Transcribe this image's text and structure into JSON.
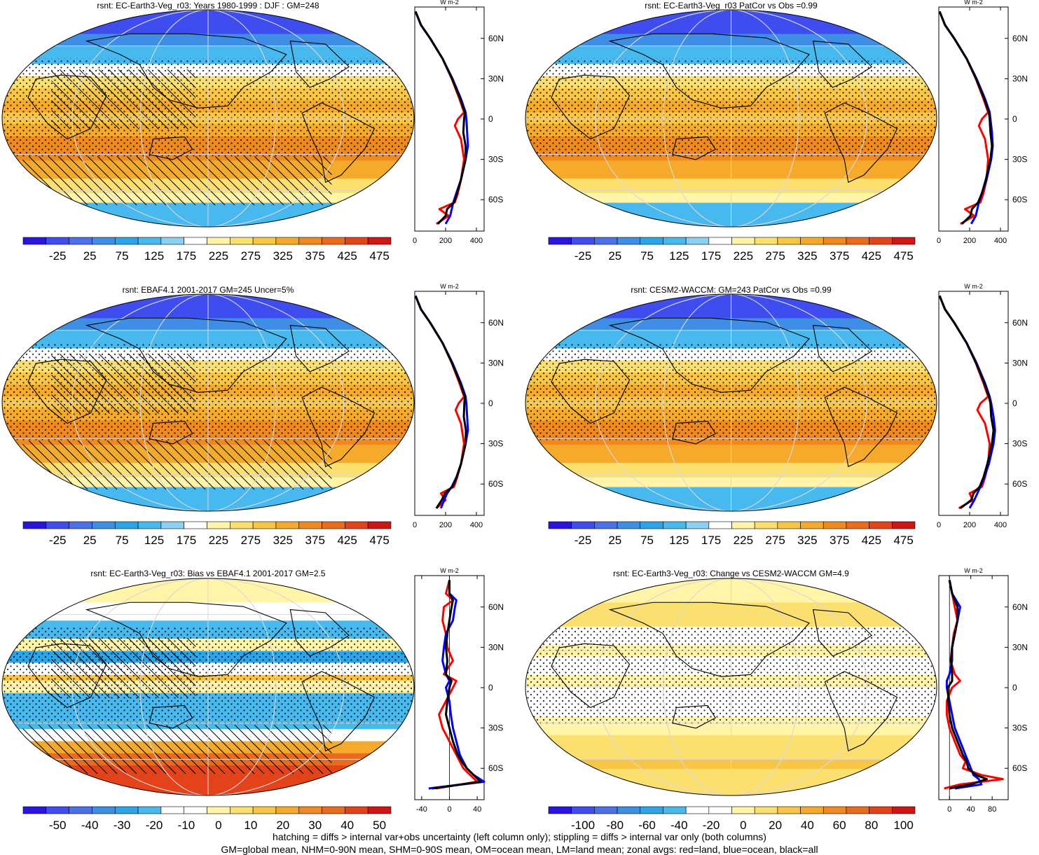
{
  "chart_data": [
    {
      "type": "heatmap",
      "title": "rsnt: EC-Earth3-Veg_r03: Years 1980-1999 : DJF : GM=248",
      "colorbar": {
        "labels": [
          "-25",
          "25",
          "75",
          "125",
          "175",
          "225",
          "275",
          "325",
          "375",
          "425",
          "475"
        ],
        "min": -50,
        "max": 500
      },
      "zonal": {
        "units": "W m-2",
        "xticks": [
          "0",
          "200",
          "400"
        ],
        "xlim": [
          0,
          450
        ],
        "lat_ticks": [
          "60N",
          "30N",
          "0",
          "30S",
          "60S"
        ],
        "series": [
          {
            "color": "red",
            "lat": [
              80,
              70,
              60,
              45,
              30,
              15,
              5,
              0,
              -5,
              -15,
              -30,
              -45,
              -55,
              -62,
              -67,
              -72,
              -78
            ],
            "values": [
              5,
              40,
              100,
              180,
              240,
              290,
              320,
              280,
              260,
              300,
              320,
              300,
              280,
              260,
              160,
              220,
              140
            ]
          },
          {
            "color": "blue",
            "lat": [
              80,
              70,
              60,
              45,
              30,
              15,
              5,
              0,
              -10,
              -20,
              -30,
              -45,
              -55,
              -62,
              -67,
              -72,
              -78
            ],
            "values": [
              5,
              40,
              100,
              180,
              245,
              300,
              330,
              335,
              340,
              345,
              330,
              300,
              270,
              250,
              240,
              230,
              200
            ]
          },
          {
            "color": "black",
            "lat": [
              80,
              70,
              60,
              45,
              30,
              15,
              5,
              0,
              -10,
              -20,
              -30,
              -45,
              -55,
              -62,
              -67,
              -72,
              -78
            ],
            "values": [
              5,
              40,
              100,
              180,
              242,
              295,
              325,
              320,
              315,
              330,
              330,
              300,
              275,
              255,
              210,
              200,
              150
            ]
          }
        ]
      }
    },
    {
      "type": "heatmap",
      "title": "rsnt: EC-Earth3-Veg_r03 PatCor vs Obs =0.99",
      "colorbar": {
        "labels": [
          "-25",
          "25",
          "75",
          "125",
          "175",
          "225",
          "275",
          "325",
          "375",
          "425",
          "475"
        ],
        "min": -50,
        "max": 500
      },
      "zonal": {
        "units": "W m-2",
        "xticks": [
          "0",
          "200",
          "400"
        ],
        "xlim": [
          0,
          450
        ],
        "lat_ticks": [
          "60N",
          "30N",
          "0",
          "30S",
          "60S"
        ],
        "series": [
          {
            "color": "red",
            "lat": [
              80,
              70,
              60,
              45,
              30,
              15,
              5,
              0,
              -5,
              -15,
              -30,
              -45,
              -55,
              -62,
              -67,
              -72,
              -78
            ],
            "values": [
              5,
              40,
              100,
              180,
              240,
              290,
              320,
              280,
              260,
              300,
              320,
              310,
              290,
              270,
              170,
              230,
              140
            ]
          },
          {
            "color": "blue",
            "lat": [
              80,
              70,
              60,
              45,
              30,
              15,
              5,
              0,
              -10,
              -20,
              -30,
              -45,
              -55,
              -62,
              -67,
              -72,
              -78
            ],
            "values": [
              5,
              40,
              100,
              180,
              245,
              300,
              330,
              335,
              345,
              350,
              340,
              310,
              280,
              260,
              250,
              240,
              210
            ]
          },
          {
            "color": "black",
            "lat": [
              80,
              70,
              60,
              45,
              30,
              15,
              5,
              0,
              -10,
              -20,
              -30,
              -45,
              -55,
              -62,
              -67,
              -72,
              -78
            ],
            "values": [
              5,
              40,
              100,
              180,
              242,
              295,
              325,
              330,
              335,
              345,
              335,
              305,
              280,
              255,
              215,
              205,
              150
            ]
          }
        ]
      }
    },
    {
      "type": "heatmap",
      "title": "rsnt: EBAF4.1 2001-2017 GM=245 Uncer=5%",
      "colorbar": {
        "labels": [
          "-25",
          "25",
          "75",
          "125",
          "175",
          "225",
          "275",
          "325",
          "375",
          "425",
          "475"
        ],
        "min": -50,
        "max": 500
      },
      "zonal": {
        "units": "W m-2",
        "xticks": [
          "0",
          "200",
          "400"
        ],
        "xlim": [
          0,
          450
        ],
        "lat_ticks": [
          "60N",
          "30N",
          "0",
          "30S",
          "60S"
        ],
        "series": [
          {
            "color": "red",
            "lat": [
              80,
              70,
              60,
              45,
              30,
              15,
              5,
              0,
              -5,
              -15,
              -30,
              -45,
              -55,
              -62,
              -67,
              -72,
              -78
            ],
            "values": [
              5,
              40,
              100,
              180,
              240,
              290,
              320,
              285,
              265,
              300,
              320,
              300,
              275,
              255,
              170,
              200,
              140
            ]
          },
          {
            "color": "blue",
            "lat": [
              80,
              70,
              60,
              45,
              30,
              15,
              5,
              0,
              -10,
              -20,
              -30,
              -45,
              -55,
              -62,
              -67,
              -72,
              -78
            ],
            "values": [
              5,
              40,
              100,
              180,
              245,
              300,
              330,
              335,
              340,
              345,
              330,
              300,
              270,
              240,
              210,
              190,
              170
            ]
          },
          {
            "color": "black",
            "lat": [
              80,
              70,
              60,
              45,
              30,
              15,
              5,
              0,
              -10,
              -20,
              -30,
              -45,
              -55,
              -62,
              -67,
              -72,
              -78
            ],
            "values": [
              5,
              40,
              100,
              180,
              242,
              295,
              325,
              322,
              318,
              332,
              330,
              300,
              272,
              245,
              195,
              175,
              140
            ]
          }
        ]
      }
    },
    {
      "type": "heatmap",
      "title": "rsnt: CESM2-WACCM: GM=243 PatCor vs Obs =0.99",
      "colorbar": {
        "labels": [
          "-25",
          "25",
          "75",
          "125",
          "175",
          "225",
          "275",
          "325",
          "375",
          "425",
          "475"
        ],
        "min": -50,
        "max": 500
      },
      "zonal": {
        "units": "W m-2",
        "xticks": [
          "0",
          "200",
          "400"
        ],
        "xlim": [
          0,
          450
        ],
        "lat_ticks": [
          "60N",
          "30N",
          "0",
          "30S",
          "60S"
        ],
        "series": [
          {
            "color": "red",
            "lat": [
              80,
              70,
              60,
              45,
              30,
              15,
              5,
              0,
              -5,
              -15,
              -30,
              -45,
              -55,
              -62,
              -67,
              -72,
              -78
            ],
            "values": [
              5,
              40,
              100,
              180,
              240,
              290,
              320,
              270,
              250,
              300,
              330,
              320,
              300,
              280,
              200,
              220,
              130
            ]
          },
          {
            "color": "blue",
            "lat": [
              80,
              70,
              60,
              45,
              30,
              15,
              5,
              0,
              -10,
              -20,
              -30,
              -45,
              -55,
              -62,
              -67,
              -72,
              -78
            ],
            "values": [
              5,
              40,
              100,
              180,
              245,
              300,
              330,
              340,
              355,
              365,
              355,
              325,
              295,
              270,
              250,
              230,
              200
            ]
          },
          {
            "color": "black",
            "lat": [
              80,
              70,
              60,
              45,
              30,
              15,
              5,
              0,
              -10,
              -20,
              -30,
              -45,
              -55,
              -62,
              -67,
              -72,
              -78
            ],
            "values": [
              5,
              40,
              100,
              180,
              242,
              295,
              325,
              335,
              340,
              355,
              345,
              315,
              290,
              265,
              225,
              210,
              140
            ]
          }
        ]
      }
    },
    {
      "type": "heatmap",
      "title": "rsnt: EC-Earth3-Veg_r03: Bias vs EBAF4.1 2001-2017 GM=2.5",
      "colorbar": {
        "labels": [
          "-50",
          "-40",
          "-30",
          "-20",
          "-10",
          "0",
          "10",
          "20",
          "30",
          "40",
          "50"
        ],
        "min": -55,
        "max": 55
      },
      "zonal": {
        "units": "W m-2",
        "xticks": [
          "-40",
          "0",
          "40"
        ],
        "xlim": [
          -50,
          50
        ],
        "lat_ticks": [
          "60N",
          "30N",
          "0",
          "30S",
          "60S"
        ],
        "series": [
          {
            "color": "red",
            "lat": [
              80,
              70,
              65,
              60,
              50,
              40,
              30,
              20,
              10,
              5,
              0,
              -10,
              -20,
              -30,
              -40,
              -50,
              -55,
              -60,
              -65,
              -70,
              -75
            ],
            "values": [
              0,
              -5,
              5,
              -8,
              -10,
              -5,
              -3,
              5,
              -8,
              10,
              5,
              -5,
              -15,
              -10,
              0,
              10,
              15,
              20,
              30,
              40,
              -20
            ]
          },
          {
            "color": "blue",
            "lat": [
              80,
              70,
              65,
              60,
              50,
              40,
              30,
              20,
              10,
              5,
              0,
              -10,
              -20,
              -30,
              -40,
              -50,
              -55,
              -60,
              -65,
              -70,
              -75
            ],
            "values": [
              0,
              0,
              10,
              8,
              5,
              -5,
              -8,
              -10,
              -5,
              0,
              -5,
              0,
              2,
              5,
              10,
              15,
              20,
              25,
              35,
              50,
              -30
            ]
          },
          {
            "color": "black",
            "lat": [
              80,
              70,
              65,
              60,
              50,
              40,
              30,
              20,
              10,
              5,
              0,
              -10,
              -20,
              -30,
              -40,
              -50,
              -55,
              -60,
              -65,
              -70,
              -75
            ],
            "values": [
              0,
              0,
              5,
              3,
              0,
              -3,
              -5,
              -3,
              -5,
              3,
              0,
              -3,
              -5,
              0,
              5,
              12,
              18,
              25,
              35,
              45,
              -25
            ]
          }
        ]
      }
    },
    {
      "type": "heatmap",
      "title": "rsnt: EC-Earth3-Veg_r03: Change vs CESM2-WACCM GM=4.9",
      "colorbar": {
        "labels": [
          "-100",
          "-80",
          "-60",
          "-40",
          "-20",
          "0",
          "20",
          "40",
          "60",
          "80",
          "100"
        ],
        "min": -110,
        "max": 110
      },
      "zonal": {
        "units": "W m-2",
        "xticks": [
          "0",
          "40",
          "80"
        ],
        "xlim": [
          -20,
          110
        ],
        "lat_ticks": [
          "60N",
          "30N",
          "0",
          "30S",
          "60S"
        ],
        "series": [
          {
            "color": "red",
            "lat": [
              80,
              70,
              60,
              50,
              40,
              30,
              20,
              10,
              5,
              0,
              -10,
              -20,
              -30,
              -40,
              -50,
              -55,
              -60,
              -65,
              -68,
              -72,
              -75
            ],
            "values": [
              0,
              5,
              10,
              15,
              8,
              5,
              2,
              10,
              20,
              5,
              -5,
              -5,
              0,
              10,
              20,
              30,
              25,
              60,
              100,
              20,
              -10
            ]
          },
          {
            "color": "blue",
            "lat": [
              80,
              70,
              60,
              50,
              40,
              30,
              20,
              10,
              5,
              0,
              -10,
              -20,
              -30,
              -40,
              -50,
              -55,
              -60,
              -65,
              -68,
              -72,
              -75
            ],
            "values": [
              0,
              5,
              20,
              15,
              10,
              5,
              5,
              0,
              -5,
              -5,
              0,
              5,
              10,
              20,
              30,
              35,
              40,
              45,
              55,
              60,
              10
            ]
          },
          {
            "color": "black",
            "lat": [
              80,
              70,
              60,
              50,
              40,
              30,
              20,
              10,
              5,
              0,
              -10,
              -20,
              -30,
              -40,
              -50,
              -55,
              -60,
              -65,
              -68,
              -72,
              -75
            ],
            "values": [
              0,
              5,
              15,
              15,
              10,
              5,
              3,
              5,
              5,
              -3,
              -2,
              0,
              5,
              15,
              25,
              32,
              35,
              50,
              70,
              40,
              0
            ]
          }
        ]
      }
    }
  ],
  "footer": {
    "line1": "hatching = diffs > internal var+obs uncertainty (left column only); stippling = diffs > internal var only (both columns)",
    "line2": "GM=global mean, NHM=0-90N mean, SHM=0-90S mean, OM=ocean mean, LM=land mean; zonal avgs: red=land, blue=ocean, black=all"
  },
  "palette_abs": [
    "#2a14e0",
    "#3f4cf0",
    "#4a70ea",
    "#3f8ee6",
    "#2aa5ea",
    "#48b9ee",
    "#8cd0f2",
    "#ffffff",
    "#fff4a8",
    "#fbe070",
    "#f9c545",
    "#f6aa2c",
    "#f08a1e",
    "#ec6a1e",
    "#e4421a",
    "#d01414"
  ],
  "palette_diff": [
    "#2a14e0",
    "#3f4cf0",
    "#4a70ea",
    "#3f8ee6",
    "#2aa5ea",
    "#48b9ee",
    "#ffffff",
    "#ffffff",
    "#fff4a8",
    "#fbe070",
    "#f9c545",
    "#f6aa2c",
    "#f08a1e",
    "#ec6a1e",
    "#e4421a",
    "#d01414"
  ]
}
